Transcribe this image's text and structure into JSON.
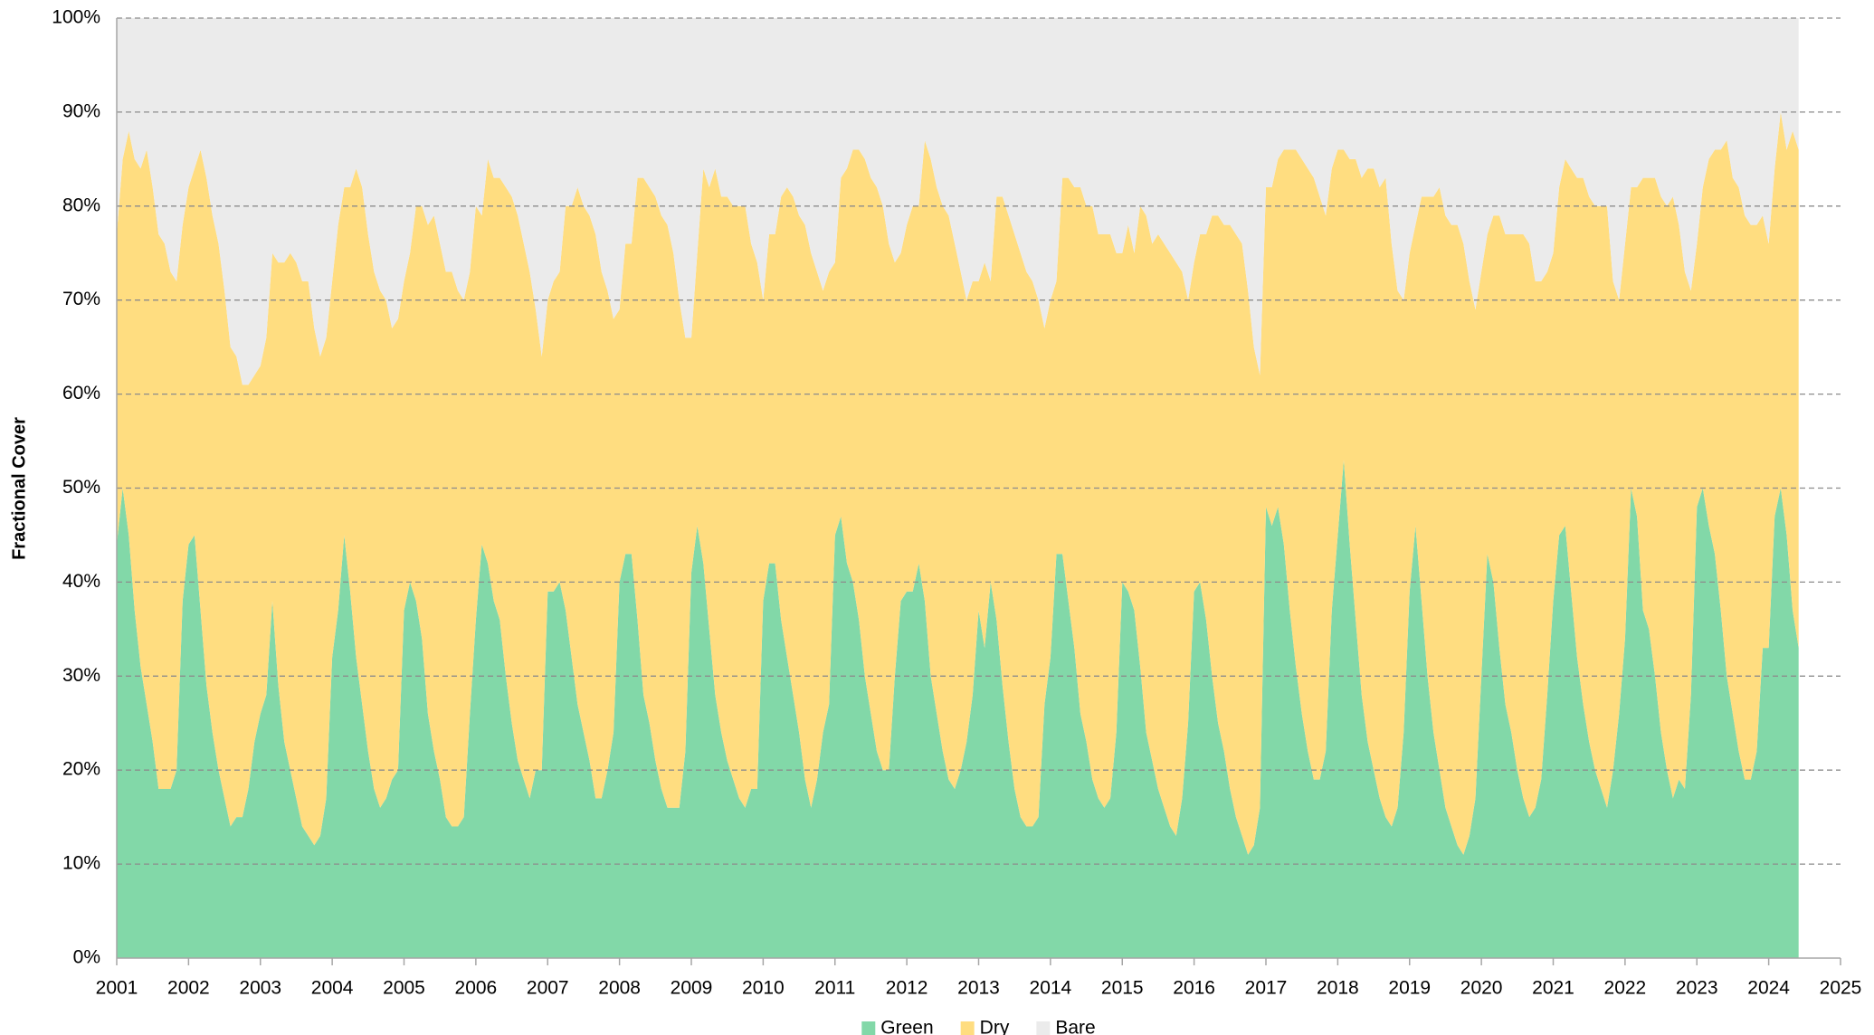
{
  "chart_data": {
    "type": "stacked-area",
    "y_label": "Fractional Cover",
    "x": [
      2001,
      2001.083,
      2001.167,
      2001.25,
      2001.333,
      2001.417,
      2001.5,
      2001.583,
      2001.667,
      2001.75,
      2001.833,
      2001.917,
      2002,
      2002.083,
      2002.167,
      2002.25,
      2002.333,
      2002.417,
      2002.5,
      2002.583,
      2002.667,
      2002.75,
      2002.833,
      2002.917,
      2003,
      2003.083,
      2003.167,
      2003.25,
      2003.333,
      2003.417,
      2003.5,
      2003.583,
      2003.667,
      2003.75,
      2003.833,
      2003.917,
      2004,
      2004.083,
      2004.167,
      2004.25,
      2004.333,
      2004.417,
      2004.5,
      2004.583,
      2004.667,
      2004.75,
      2004.833,
      2004.917,
      2005,
      2005.083,
      2005.167,
      2005.25,
      2005.333,
      2005.417,
      2005.5,
      2005.583,
      2005.667,
      2005.75,
      2005.833,
      2005.917,
      2006,
      2006.083,
      2006.167,
      2006.25,
      2006.333,
      2006.417,
      2006.5,
      2006.583,
      2006.667,
      2006.75,
      2006.833,
      2006.917,
      2007,
      2007.083,
      2007.167,
      2007.25,
      2007.333,
      2007.417,
      2007.5,
      2007.583,
      2007.667,
      2007.75,
      2007.833,
      2007.917,
      2008,
      2008.083,
      2008.167,
      2008.25,
      2008.333,
      2008.417,
      2008.5,
      2008.583,
      2008.667,
      2008.75,
      2008.833,
      2008.917,
      2009,
      2009.083,
      2009.167,
      2009.25,
      2009.333,
      2009.417,
      2009.5,
      2009.583,
      2009.667,
      2009.75,
      2009.833,
      2009.917,
      2010,
      2010.083,
      2010.167,
      2010.25,
      2010.333,
      2010.417,
      2010.5,
      2010.583,
      2010.667,
      2010.75,
      2010.833,
      2010.917,
      2011,
      2011.083,
      2011.167,
      2011.25,
      2011.333,
      2011.417,
      2011.5,
      2011.583,
      2011.667,
      2011.75,
      2011.833,
      2011.917,
      2012,
      2012.083,
      2012.167,
      2012.25,
      2012.333,
      2012.417,
      2012.5,
      2012.583,
      2012.667,
      2012.75,
      2012.833,
      2012.917,
      2013,
      2013.083,
      2013.167,
      2013.25,
      2013.333,
      2013.417,
      2013.5,
      2013.583,
      2013.667,
      2013.75,
      2013.833,
      2013.917,
      2014,
      2014.083,
      2014.167,
      2014.25,
      2014.333,
      2014.417,
      2014.5,
      2014.583,
      2014.667,
      2014.75,
      2014.833,
      2014.917,
      2015,
      2015.083,
      2015.167,
      2015.25,
      2015.333,
      2015.417,
      2015.5,
      2015.583,
      2015.667,
      2015.75,
      2015.833,
      2015.917,
      2016,
      2016.083,
      2016.167,
      2016.25,
      2016.333,
      2016.417,
      2016.5,
      2016.583,
      2016.667,
      2016.75,
      2016.833,
      2016.917,
      2017,
      2017.083,
      2017.167,
      2017.25,
      2017.333,
      2017.417,
      2017.5,
      2017.583,
      2017.667,
      2017.75,
      2017.833,
      2017.917,
      2018,
      2018.083,
      2018.167,
      2018.25,
      2018.333,
      2018.417,
      2018.5,
      2018.583,
      2018.667,
      2018.75,
      2018.833,
      2018.917,
      2019,
      2019.083,
      2019.167,
      2019.25,
      2019.333,
      2019.417,
      2019.5,
      2019.583,
      2019.667,
      2019.75,
      2019.833,
      2019.917,
      2020,
      2020.083,
      2020.167,
      2020.25,
      2020.333,
      2020.417,
      2020.5,
      2020.583,
      2020.667,
      2020.75,
      2020.833,
      2020.917,
      2021,
      2021.083,
      2021.167,
      2021.25,
      2021.333,
      2021.417,
      2021.5,
      2021.583,
      2021.667,
      2021.75,
      2021.833,
      2021.917,
      2022,
      2022.083,
      2022.167,
      2022.25,
      2022.333,
      2022.417,
      2022.5,
      2022.583,
      2022.667,
      2022.75,
      2022.833,
      2022.917,
      2023,
      2023.083,
      2023.167,
      2023.25,
      2023.333,
      2023.417,
      2023.5,
      2023.583,
      2023.667,
      2023.75,
      2023.833,
      2023.917,
      2024,
      2024.083,
      2024.167,
      2024.25,
      2024.333,
      2024.417
    ],
    "series": [
      {
        "name": "Green",
        "color": "#82d8a8",
        "values": [
          44,
          50,
          45,
          37,
          31,
          27,
          23,
          18,
          18,
          18,
          20,
          38,
          44,
          45,
          37,
          29,
          24,
          20,
          17,
          14,
          15,
          15,
          18,
          23,
          26,
          28,
          38,
          29,
          23,
          20,
          17,
          14,
          13,
          12,
          13,
          17,
          32,
          37,
          45,
          39,
          32,
          27,
          22,
          18,
          16,
          17,
          19,
          20,
          37,
          40,
          38,
          34,
          26,
          22,
          19,
          15,
          14,
          14,
          15,
          26,
          36,
          44,
          42,
          38,
          36,
          30,
          25,
          21,
          19,
          17,
          20,
          20,
          39,
          39,
          40,
          37,
          32,
          27,
          24,
          21,
          17,
          17,
          20,
          24,
          40,
          43,
          43,
          36,
          28,
          25,
          21,
          18,
          16,
          16,
          16,
          22,
          41,
          46,
          42,
          35,
          28,
          24,
          21,
          19,
          17,
          16,
          18,
          18,
          38,
          42,
          42,
          36,
          32,
          28,
          24,
          19,
          16,
          19,
          24,
          27,
          45,
          47,
          42,
          40,
          36,
          30,
          26,
          22,
          20,
          20,
          30,
          38,
          39,
          39,
          42,
          38,
          30,
          26,
          22,
          19,
          18,
          20,
          23,
          28,
          37,
          33,
          40,
          36,
          29,
          23,
          18,
          15,
          14,
          14,
          15,
          27,
          32,
          43,
          43,
          38,
          33,
          26,
          23,
          19,
          17,
          16,
          17,
          24,
          40,
          39,
          37,
          31,
          24,
          21,
          18,
          16,
          14,
          13,
          17,
          25,
          39,
          40,
          36,
          30,
          25,
          22,
          18,
          15,
          13,
          11,
          12,
          16,
          48,
          46,
          48,
          44,
          37,
          31,
          26,
          22,
          19,
          19,
          22,
          37,
          45,
          53,
          44,
          36,
          28,
          23,
          20,
          17,
          15,
          14,
          16,
          24,
          39,
          46,
          38,
          30,
          24,
          20,
          16,
          14,
          12,
          11,
          13,
          17,
          30,
          43,
          40,
          33,
          27,
          24,
          20,
          17,
          15,
          16,
          19,
          28,
          38,
          45,
          46,
          39,
          32,
          27,
          23,
          20,
          18,
          16,
          20,
          26,
          34,
          50,
          47,
          37,
          35,
          30,
          24,
          20,
          17,
          19,
          18,
          28,
          48,
          50,
          46,
          43,
          37,
          30,
          26,
          22,
          19,
          19,
          22,
          33,
          33,
          47,
          50,
          45,
          37,
          33
        ]
      },
      {
        "name": "Dry",
        "color": "#ffdd80",
        "values": [
          33,
          35,
          43,
          48,
          53,
          59,
          59,
          59,
          58,
          55,
          52,
          40,
          38,
          39,
          49,
          54,
          55,
          56,
          54,
          51,
          49,
          46,
          43,
          39,
          37,
          38,
          37,
          45,
          51,
          55,
          57,
          58,
          59,
          55,
          51,
          49,
          40,
          41,
          37,
          43,
          52,
          55,
          55,
          55,
          55,
          53,
          48,
          48,
          35,
          35,
          42,
          46,
          52,
          57,
          57,
          58,
          59,
          57,
          55,
          47,
          44,
          35,
          43,
          45,
          47,
          52,
          56,
          58,
          57,
          56,
          49,
          44,
          31,
          33,
          33,
          43,
          48,
          55,
          56,
          58,
          60,
          56,
          51,
          44,
          29,
          33,
          33,
          47,
          55,
          57,
          60,
          61,
          62,
          59,
          54,
          44,
          25,
          29,
          42,
          47,
          56,
          57,
          60,
          61,
          63,
          64,
          58,
          56,
          32,
          35,
          35,
          45,
          50,
          53,
          55,
          59,
          59,
          54,
          47,
          46,
          29,
          36,
          42,
          46,
          50,
          55,
          57,
          60,
          60,
          56,
          44,
          37,
          39,
          41,
          38,
          49,
          55,
          56,
          58,
          60,
          58,
          53,
          47,
          44,
          35,
          41,
          32,
          45,
          52,
          56,
          59,
          60,
          59,
          58,
          55,
          40,
          38,
          29,
          40,
          45,
          49,
          56,
          57,
          61,
          60,
          61,
          60,
          51,
          35,
          39,
          38,
          49,
          55,
          55,
          59,
          60,
          61,
          61,
          56,
          45,
          35,
          37,
          41,
          49,
          54,
          56,
          60,
          62,
          63,
          60,
          53,
          46,
          34,
          36,
          37,
          42,
          49,
          55,
          59,
          62,
          64,
          62,
          57,
          47,
          41,
          33,
          41,
          49,
          55,
          61,
          64,
          65,
          68,
          62,
          55,
          46,
          36,
          32,
          43,
          51,
          57,
          62,
          63,
          64,
          66,
          65,
          59,
          52,
          43,
          34,
          39,
          46,
          50,
          53,
          57,
          60,
          61,
          56,
          53,
          45,
          37,
          37,
          39,
          45,
          51,
          56,
          58,
          60,
          62,
          64,
          52,
          44,
          42,
          32,
          35,
          46,
          48,
          53,
          57,
          60,
          64,
          59,
          55,
          43,
          28,
          32,
          39,
          43,
          49,
          57,
          57,
          60,
          60,
          59,
          56,
          46,
          43,
          37,
          40,
          41,
          51,
          53
        ]
      },
      {
        "name": "Bare",
        "color": "#ebebeb",
        "values": [
          23,
          15,
          12,
          15,
          16,
          14,
          18,
          23,
          24,
          27,
          28,
          22,
          18,
          16,
          14,
          17,
          21,
          24,
          29,
          35,
          36,
          39,
          39,
          38,
          37,
          34,
          25,
          26,
          26,
          25,
          26,
          28,
          28,
          33,
          36,
          34,
          28,
          22,
          18,
          18,
          16,
          18,
          23,
          27,
          29,
          30,
          33,
          32,
          28,
          25,
          20,
          20,
          22,
          21,
          24,
          27,
          27,
          29,
          30,
          27,
          20,
          21,
          15,
          17,
          17,
          18,
          19,
          21,
          24,
          27,
          31,
          36,
          30,
          28,
          27,
          20,
          20,
          18,
          20,
          21,
          23,
          27,
          29,
          32,
          31,
          24,
          24,
          17,
          17,
          18,
          19,
          21,
          22,
          25,
          30,
          34,
          34,
          25,
          16,
          18,
          16,
          19,
          19,
          20,
          20,
          20,
          24,
          26,
          30,
          23,
          23,
          19,
          18,
          19,
          21,
          22,
          25,
          27,
          29,
          27,
          26,
          17,
          16,
          14,
          14,
          15,
          17,
          18,
          20,
          24,
          26,
          25,
          22,
          20,
          20,
          13,
          15,
          18,
          20,
          21,
          24,
          27,
          30,
          28,
          28,
          26,
          28,
          19,
          19,
          21,
          23,
          25,
          27,
          28,
          30,
          33,
          30,
          28,
          17,
          17,
          18,
          18,
          20,
          20,
          23,
          23,
          23,
          25,
          25,
          22,
          25,
          20,
          21,
          24,
          23,
          24,
          25,
          26,
          27,
          30,
          26,
          23,
          23,
          21,
          21,
          22,
          22,
          23,
          24,
          29,
          35,
          38,
          18,
          18,
          15,
          14,
          14,
          14,
          15,
          16,
          17,
          19,
          21,
          16,
          14,
          14,
          15,
          15,
          17,
          16,
          16,
          18,
          17,
          24,
          29,
          30,
          25,
          22,
          19,
          19,
          19,
          18,
          21,
          22,
          22,
          24,
          28,
          31,
          27,
          23,
          21,
          21,
          23,
          23,
          23,
          23,
          24,
          28,
          28,
          27,
          25,
          18,
          15,
          16,
          17,
          17,
          19,
          20,
          20,
          20,
          28,
          30,
          24,
          18,
          18,
          17,
          17,
          17,
          19,
          20,
          19,
          22,
          27,
          29,
          24,
          18,
          15,
          14,
          14,
          13,
          17,
          18,
          21,
          22,
          22,
          21,
          24,
          16,
          10,
          14,
          12,
          14
        ]
      }
    ],
    "xlim": [
      2001,
      2025
    ],
    "xticks": [
      2001,
      2002,
      2003,
      2004,
      2005,
      2006,
      2007,
      2008,
      2009,
      2010,
      2011,
      2012,
      2013,
      2014,
      2015,
      2016,
      2017,
      2018,
      2019,
      2020,
      2021,
      2022,
      2023,
      2024,
      2025
    ],
    "ylim": [
      0,
      100
    ],
    "yticks": [
      {
        "value": 0,
        "label": "0%"
      },
      {
        "value": 10,
        "label": "10%"
      },
      {
        "value": 20,
        "label": "20%"
      },
      {
        "value": 30,
        "label": "30%"
      },
      {
        "value": 40,
        "label": "40%"
      },
      {
        "value": 50,
        "label": "50%"
      },
      {
        "value": 60,
        "label": "60%"
      },
      {
        "value": 70,
        "label": "70%"
      },
      {
        "value": 80,
        "label": "80%"
      },
      {
        "value": 90,
        "label": "90%"
      },
      {
        "value": 100,
        "label": "100%"
      }
    ],
    "grid": true,
    "legend": "bottom"
  }
}
